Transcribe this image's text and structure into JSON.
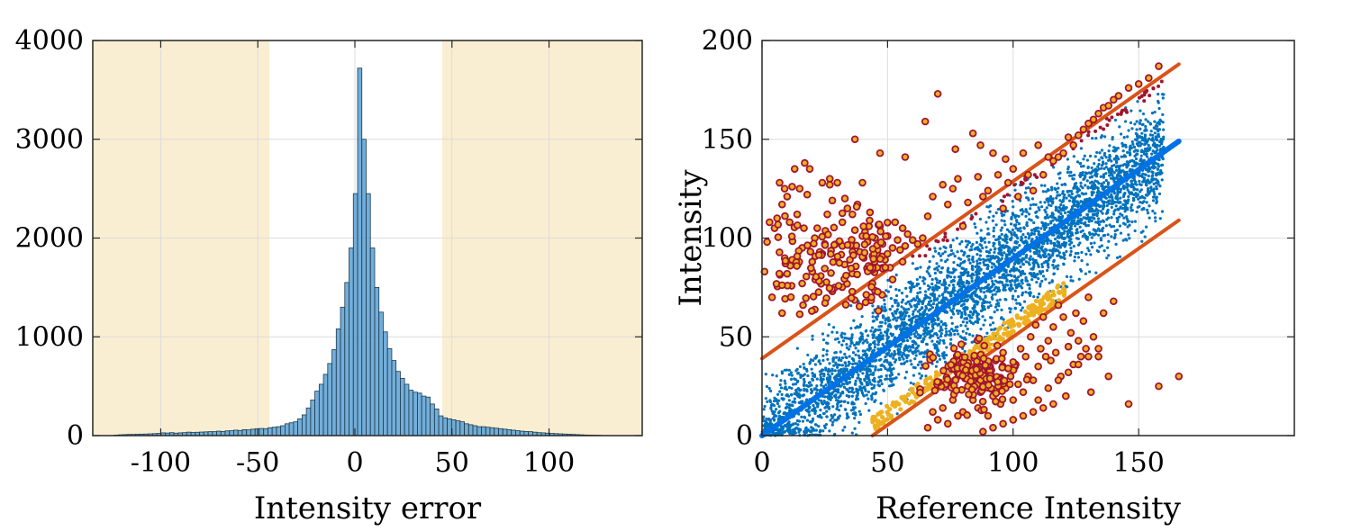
{
  "chart_data": [
    {
      "type": "histogram",
      "xlabel": "Intensity error",
      "ylabel": "",
      "xlim": [
        -135,
        148
      ],
      "ylim": [
        0,
        4000
      ],
      "xticks": [
        -100,
        -50,
        0,
        50,
        100
      ],
      "xtick_labels": [
        "-100",
        "-50",
        "0",
        "50",
        "100"
      ],
      "yticks": [
        0,
        1000,
        2000,
        3000,
        4000
      ],
      "ytick_labels": [
        "0",
        "1000",
        "2000",
        "3000",
        "4000"
      ],
      "grid": true,
      "shaded_regions": [
        [
          -135,
          -44
        ],
        [
          45,
          148
        ]
      ],
      "shade_color": "#f9eed1",
      "bar_color": "#5aa0d2",
      "bin_width": 2.2,
      "bins_start": -124,
      "counts": [
        5,
        8,
        10,
        12,
        12,
        14,
        15,
        16,
        18,
        20,
        22,
        28,
        26,
        30,
        25,
        28,
        30,
        35,
        32,
        34,
        36,
        38,
        40,
        40,
        45,
        42,
        48,
        50,
        55,
        52,
        60,
        58,
        65,
        70,
        72,
        70,
        80,
        85,
        90,
        100,
        120,
        130,
        140,
        170,
        210,
        280,
        360,
        450,
        520,
        620,
        730,
        870,
        1080,
        1300,
        1550,
        1900,
        2450,
        3720,
        3000,
        2450,
        1900,
        1500,
        1250,
        1050,
        880,
        760,
        650,
        580,
        520,
        460,
        440,
        430,
        400,
        390,
        320,
        270,
        200,
        180,
        170,
        160,
        150,
        140,
        120,
        110,
        100,
        90,
        90,
        85,
        80,
        75,
        70,
        65,
        60,
        55,
        50,
        45,
        42,
        40,
        35,
        30,
        28,
        25,
        22,
        20,
        18,
        16,
        14,
        12,
        10,
        8,
        6,
        5,
        4,
        3
      ]
    },
    {
      "type": "scatter",
      "xlabel": "Reference Intensity",
      "ylabel": "Intensity",
      "xlim": [
        0,
        212
      ],
      "ylim": [
        0,
        200
      ],
      "xticks": [
        0,
        50,
        100,
        150
      ],
      "xtick_labels": [
        "0",
        "50",
        "100",
        "150"
      ],
      "yticks": [
        0,
        50,
        100,
        150,
        200
      ],
      "ytick_labels": [
        "0",
        "50",
        "100",
        "150",
        "200"
      ],
      "grid": true,
      "lines": [
        {
          "x": [
            0,
            166
          ],
          "y": [
            39,
            188
          ],
          "color": "#d95319",
          "width": 4
        },
        {
          "x": [
            0,
            166
          ],
          "y": [
            0,
            149
          ],
          "color": "#0072e6",
          "width": 6
        },
        {
          "x": [
            44,
            166
          ],
          "y": [
            0,
            109
          ],
          "color": "#d95319",
          "width": 4
        }
      ],
      "colors": {
        "inlier": "#0072bd",
        "outlier_fill": "#edb120",
        "outlier_edge": "#a2142f",
        "lower_band": "#edb120",
        "upper_band": "#a2142f"
      },
      "upper_outliers": [
        [
          1,
          83
        ],
        [
          2,
          98
        ],
        [
          3,
          108
        ],
        [
          5,
          105
        ],
        [
          6,
          110
        ],
        [
          8,
          117
        ],
        [
          9,
          125
        ],
        [
          10,
          121
        ],
        [
          11,
          108
        ],
        [
          12,
          126
        ],
        [
          13,
          135
        ],
        [
          14,
          112
        ],
        [
          15,
          125
        ],
        [
          16,
          95
        ],
        [
          18,
          122
        ],
        [
          19,
          135
        ],
        [
          20,
          88
        ],
        [
          21,
          100
        ],
        [
          22,
          105
        ],
        [
          23,
          93
        ],
        [
          24,
          128
        ],
        [
          25,
          97
        ],
        [
          26,
          112
        ],
        [
          27,
          127
        ],
        [
          28,
          119
        ],
        [
          29,
          75
        ],
        [
          30,
          128
        ],
        [
          31,
          98
        ],
        [
          32,
          108
        ],
        [
          33,
          120
        ],
        [
          34,
          115
        ],
        [
          35,
          89
        ],
        [
          36,
          112
        ],
        [
          37,
          104
        ],
        [
          38,
          117
        ],
        [
          39,
          93
        ],
        [
          40,
          128
        ],
        [
          41,
          103
        ],
        [
          42,
          98
        ],
        [
          43,
          113
        ],
        [
          44,
          91
        ],
        [
          45,
          100
        ],
        [
          46,
          94
        ],
        [
          47,
          106
        ],
        [
          48,
          97
        ],
        [
          49,
          89
        ],
        [
          50,
          101
        ],
        [
          51,
          85
        ],
        [
          52,
          95
        ],
        [
          53,
          108
        ],
        [
          54,
          99
        ],
        [
          55,
          94
        ],
        [
          56,
          105
        ],
        [
          57,
          96
        ],
        [
          58,
          102
        ],
        [
          60,
          99
        ],
        [
          62,
          97
        ],
        [
          64,
          100
        ],
        [
          66,
          111
        ],
        [
          68,
          121
        ],
        [
          70,
          173
        ],
        [
          72,
          127
        ],
        [
          74,
          117
        ],
        [
          76,
          125
        ],
        [
          78,
          130
        ],
        [
          80,
          106
        ],
        [
          82,
          118
        ],
        [
          84,
          153
        ],
        [
          86,
          131
        ],
        [
          88,
          121
        ],
        [
          90,
          124
        ],
        [
          92,
          143
        ],
        [
          94,
          132
        ],
        [
          96,
          115
        ],
        [
          98,
          128
        ],
        [
          100,
          135
        ],
        [
          102,
          121
        ],
        [
          104,
          143
        ],
        [
          106,
          132
        ],
        [
          108,
          124
        ],
        [
          110,
          147
        ],
        [
          112,
          132
        ],
        [
          114,
          141
        ],
        [
          116,
          139
        ],
        [
          118,
          141
        ],
        [
          120,
          143
        ],
        [
          122,
          151
        ],
        [
          124,
          147
        ],
        [
          126,
          152
        ],
        [
          128,
          155
        ],
        [
          130,
          158
        ],
        [
          132,
          160
        ],
        [
          134,
          163
        ],
        [
          136,
          166
        ],
        [
          138,
          167
        ],
        [
          140,
          170
        ],
        [
          142,
          172
        ],
        [
          146,
          176
        ],
        [
          150,
          178
        ],
        [
          154,
          181
        ],
        [
          158,
          187
        ],
        [
          7,
          128
        ],
        [
          17,
          138
        ],
        [
          27,
          130
        ],
        [
          37,
          150
        ],
        [
          47,
          143
        ],
        [
          57,
          141
        ],
        [
          65,
          159
        ],
        [
          77,
          145
        ],
        [
          87,
          147
        ],
        [
          97,
          140
        ],
        [
          4,
          70
        ],
        [
          8,
          62
        ],
        [
          12,
          89
        ],
        [
          16,
          77
        ],
        [
          20,
          83
        ],
        [
          24,
          92
        ],
        [
          28,
          73
        ],
        [
          32,
          96
        ],
        [
          36,
          82
        ],
        [
          40,
          101
        ],
        [
          44,
          77
        ],
        [
          48,
          85
        ],
        [
          52,
          79
        ],
        [
          56,
          88
        ]
      ],
      "lower_outliers": [
        [
          80,
          12
        ],
        [
          82,
          25
        ],
        [
          84,
          18
        ],
        [
          85,
          30
        ],
        [
          86,
          14
        ],
        [
          87,
          22
        ],
        [
          88,
          35
        ],
        [
          89,
          26
        ],
        [
          90,
          10
        ],
        [
          91,
          32
        ],
        [
          92,
          20
        ],
        [
          93,
          38
        ],
        [
          94,
          28
        ],
        [
          95,
          16
        ],
        [
          96,
          42
        ],
        [
          97,
          24
        ],
        [
          98,
          34
        ],
        [
          99,
          30
        ],
        [
          100,
          18
        ],
        [
          101,
          36
        ],
        [
          102,
          26
        ],
        [
          103,
          44
        ],
        [
          104,
          22
        ],
        [
          105,
          40
        ],
        [
          106,
          30
        ],
        [
          107,
          50
        ],
        [
          108,
          28
        ],
        [
          109,
          56
        ],
        [
          110,
          35
        ],
        [
          111,
          44
        ],
        [
          112,
          60
        ],
        [
          113,
          40
        ],
        [
          114,
          48
        ],
        [
          115,
          38
        ],
        [
          116,
          55
        ],
        [
          117,
          42
        ],
        [
          118,
          66
        ],
        [
          119,
          30
        ],
        [
          120,
          60
        ],
        [
          121,
          20
        ],
        [
          122,
          45
        ],
        [
          123,
          52
        ],
        [
          124,
          36
        ],
        [
          125,
          62
        ],
        [
          126,
          48
        ],
        [
          127,
          40
        ],
        [
          128,
          58
        ],
        [
          129,
          44
        ],
        [
          130,
          70
        ],
        [
          131,
          22
        ],
        [
          132,
          50
        ],
        [
          134,
          40
        ],
        [
          136,
          62
        ],
        [
          138,
          30
        ],
        [
          140,
          68
        ],
        [
          70,
          8
        ],
        [
          72,
          14
        ],
        [
          74,
          6
        ],
        [
          76,
          18
        ],
        [
          78,
          10
        ],
        [
          66,
          4
        ],
        [
          68,
          12
        ],
        [
          88,
          2
        ],
        [
          92,
          4
        ],
        [
          96,
          6
        ],
        [
          100,
          8
        ],
        [
          104,
          10
        ],
        [
          108,
          12
        ],
        [
          112,
          14
        ],
        [
          116,
          16
        ],
        [
          146,
          16
        ],
        [
          158,
          25
        ],
        [
          166,
          30
        ],
        [
          110,
          18
        ],
        [
          114,
          24
        ],
        [
          118,
          28
        ],
        [
          122,
          32
        ],
        [
          126,
          36
        ],
        [
          130,
          40
        ],
        [
          134,
          44
        ]
      ]
    }
  ]
}
